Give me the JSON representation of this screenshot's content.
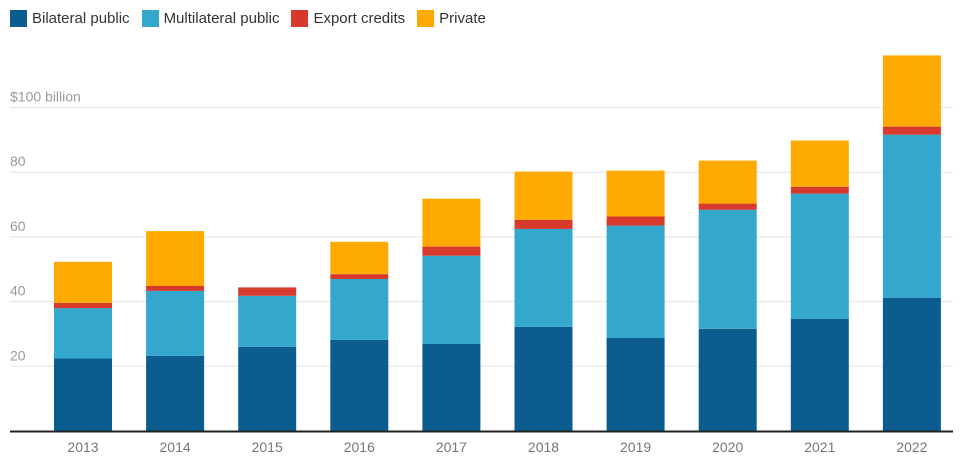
{
  "chart_data": {
    "type": "bar",
    "stacked": true,
    "title": "",
    "xlabel": "",
    "ylabel": "",
    "y_unit_label": "$100 billion",
    "ylim": [
      0,
      116
    ],
    "yticks": [
      20,
      40,
      60,
      80,
      100
    ],
    "ytick_labels": [
      "20",
      "40",
      "60",
      "80",
      "$100 billion"
    ],
    "grid": true,
    "legend_position": "top-left",
    "categories": [
      "2013",
      "2014",
      "2015",
      "2016",
      "2017",
      "2018",
      "2019",
      "2020",
      "2021",
      "2022"
    ],
    "series": [
      {
        "name": "Bilateral public",
        "color": "#0b5c8f",
        "values": [
          22.4,
          23.2,
          26.0,
          28.2,
          26.9,
          32.2,
          28.8,
          31.6,
          34.7,
          41.2
        ]
      },
      {
        "name": "Multilateral public",
        "color": "#34a7cd",
        "values": [
          15.6,
          20.1,
          15.8,
          18.8,
          27.3,
          30.3,
          34.7,
          36.8,
          38.7,
          50.4
        ]
      },
      {
        "name": "Export credits",
        "color": "#d73a2c",
        "values": [
          1.6,
          1.6,
          2.6,
          1.5,
          2.8,
          2.8,
          2.8,
          1.9,
          2.1,
          2.5
        ]
      },
      {
        "name": "Private",
        "color": "#ffaa00",
        "values": [
          12.7,
          16.9,
          0.0,
          10.0,
          14.8,
          14.9,
          14.2,
          13.3,
          14.3,
          22.0
        ]
      }
    ]
  }
}
